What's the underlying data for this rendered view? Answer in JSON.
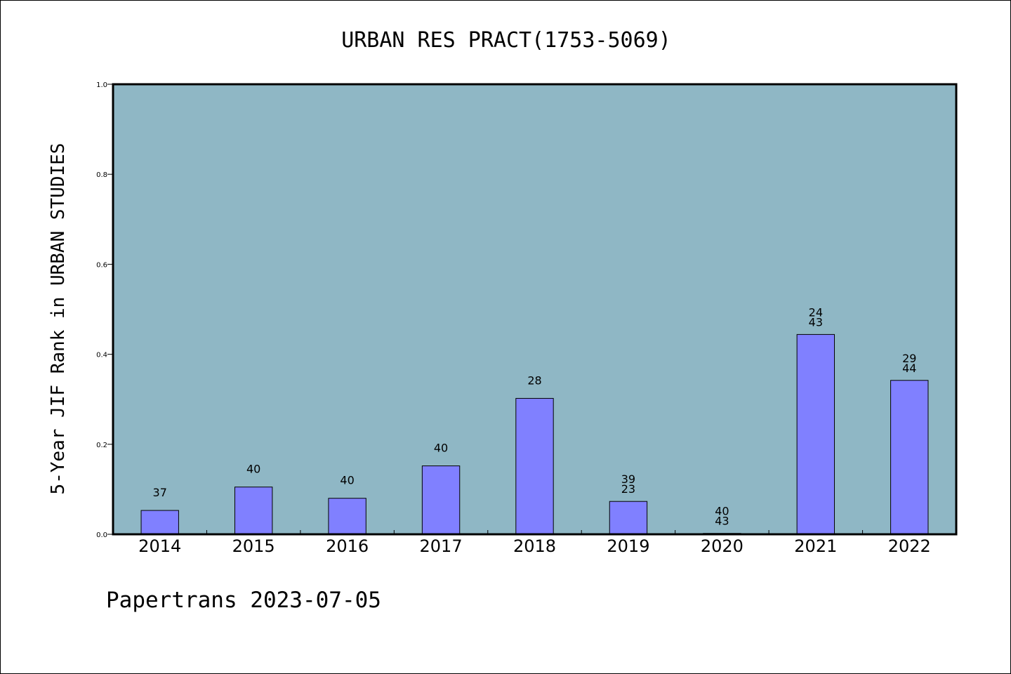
{
  "chart_data": {
    "type": "bar",
    "title": "URBAN RES PRACT(1753-5069)",
    "ylabel": "5-Year JIF Rank in URBAN STUDIES",
    "xlabel": "",
    "categories": [
      "2014",
      "2015",
      "2016",
      "2017",
      "2018",
      "2019",
      "2020",
      "2021",
      "2022"
    ],
    "values": [
      0.053,
      0.105,
      0.08,
      0.152,
      0.302,
      0.073,
      0.002,
      0.444,
      0.342
    ],
    "data_labels": [
      [
        "37"
      ],
      [
        "40"
      ],
      [
        "40"
      ],
      [
        "40"
      ],
      [
        "28"
      ],
      [
        "39",
        "23"
      ],
      [
        "40",
        "43"
      ],
      [
        "24",
        "43"
      ],
      [
        "29",
        "44"
      ]
    ],
    "ylim": [
      0,
      1.0
    ],
    "yticks": [
      "0.0",
      "0.2",
      "0.4",
      "0.6",
      "0.8",
      "1.0"
    ],
    "grid": false,
    "colors": {
      "plot_background": "#8fb7c5",
      "bar": "#8080ff",
      "bar_edge": "#000000"
    }
  },
  "footer": {
    "text": "Papertrans 2023-07-05"
  }
}
